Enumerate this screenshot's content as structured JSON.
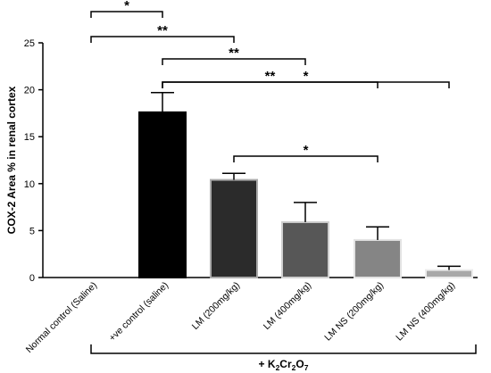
{
  "chart_data": {
    "type": "bar",
    "ylabel": "COX-2 Area % in renal cortex",
    "ylim": [
      0,
      25
    ],
    "yticks": [
      "0",
      "5",
      "10",
      "15",
      "20",
      "25"
    ],
    "categories": [
      "Normal control (Saline)",
      "+ve control (saline)",
      "LM (200mg/kg)",
      "LM (400mg/kg)",
      "LM NS (200mg/kg)",
      "LM NS (400mg/kg)"
    ],
    "values": [
      0,
      17.6,
      10.4,
      5.9,
      4.0,
      0.8
    ],
    "errors": [
      0,
      2.1,
      0.7,
      2.1,
      1.4,
      0.4
    ],
    "bar_colors": [
      "#000000",
      "#000000",
      "#2b2b2b",
      "#575757",
      "#858585",
      "#a8a8a8"
    ],
    "bar_edge_colors": [
      "#000000",
      "#000000",
      "#aaaaaa",
      "#cfcfcf",
      "#e3e3e3",
      "#ececec"
    ],
    "significance": [
      {
        "from": 0,
        "to": 1,
        "label": "*"
      },
      {
        "from": 0,
        "to": 2,
        "label": "**"
      },
      {
        "from": 1,
        "to": 3,
        "label": "**"
      },
      {
        "from": 1,
        "to": 4,
        "label": "**"
      },
      {
        "from": 1,
        "to": 5,
        "label": "*"
      },
      {
        "from": 2,
        "to": 4,
        "label": "*"
      }
    ],
    "group_bracket": {
      "from": 1,
      "to": 5,
      "label": "+ K",
      "sub1": "2",
      "mid": "Cr",
      "sub2": "2",
      "mid2": "O",
      "sub3": "7"
    },
    "grid": false,
    "legend": "none"
  }
}
